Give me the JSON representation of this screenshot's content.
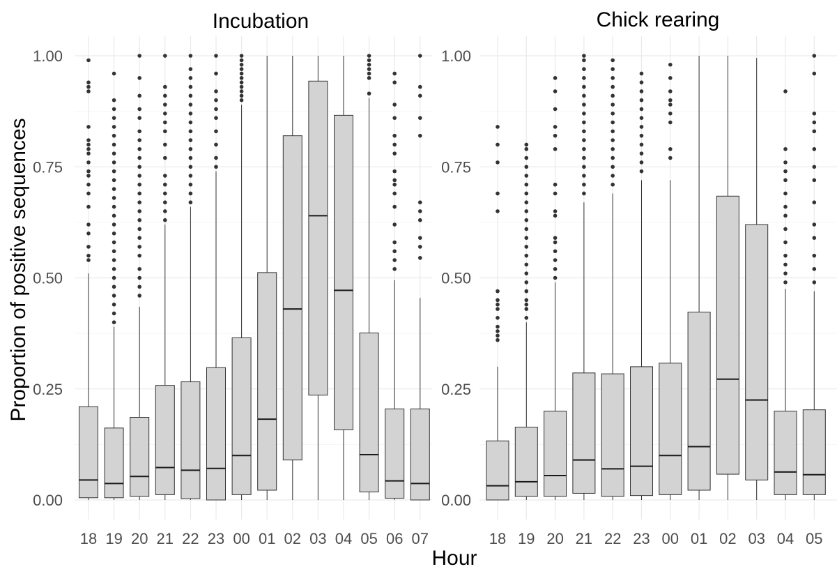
{
  "xlabel": "Hour",
  "ylabel": "Proportion of positive sequences",
  "chart_data": [
    {
      "type": "box",
      "title": "Incubation",
      "ylim": [
        0,
        1
      ],
      "y_ticks": [
        "0.00",
        "0.25",
        "0.50",
        "0.75",
        "1.00"
      ],
      "categories": [
        "18",
        "19",
        "20",
        "21",
        "22",
        "23",
        "00",
        "01",
        "02",
        "03",
        "04",
        "05",
        "06",
        "07"
      ],
      "boxes": [
        {
          "q1": 0.005,
          "median": 0.045,
          "q3": 0.21,
          "whisker_low": 0,
          "whisker_high": 0.51,
          "outliers": [
            0.54,
            0.55,
            0.57,
            0.6,
            0.62,
            0.66,
            0.69,
            0.71,
            0.73,
            0.74,
            0.76,
            0.78,
            0.79,
            0.8,
            0.81,
            0.84,
            0.92,
            0.93,
            0.94,
            0.99
          ]
        },
        {
          "q1": 0.005,
          "median": 0.037,
          "q3": 0.162,
          "whisker_low": 0,
          "whisker_high": 0.39,
          "outliers": [
            0.4,
            0.42,
            0.44,
            0.46,
            0.48,
            0.5,
            0.52,
            0.54,
            0.56,
            0.58,
            0.6,
            0.62,
            0.64,
            0.66,
            0.68,
            0.7,
            0.72,
            0.74,
            0.76,
            0.78,
            0.8,
            0.82,
            0.84,
            0.86,
            0.88,
            0.9,
            0.96
          ]
        },
        {
          "q1": 0.008,
          "median": 0.053,
          "q3": 0.186,
          "whisker_low": 0,
          "whisker_high": 0.435,
          "outliers": [
            0.46,
            0.48,
            0.5,
            0.52,
            0.55,
            0.57,
            0.59,
            0.61,
            0.63,
            0.65,
            0.67,
            0.69,
            0.71,
            0.73,
            0.75,
            0.77,
            0.79,
            0.81,
            0.83,
            0.86,
            0.88,
            0.91,
            0.95,
            1.0
          ]
        },
        {
          "q1": 0.012,
          "median": 0.073,
          "q3": 0.258,
          "whisker_low": 0,
          "whisker_high": 0.62,
          "outliers": [
            0.63,
            0.65,
            0.67,
            0.69,
            0.71,
            0.73,
            0.77,
            0.8,
            0.83,
            0.85,
            0.87,
            0.89,
            0.91,
            0.93,
            1.0
          ]
        },
        {
          "q1": 0.003,
          "median": 0.067,
          "q3": 0.266,
          "whisker_low": 0,
          "whisker_high": 0.66,
          "outliers": [
            0.67,
            0.69,
            0.71,
            0.73,
            0.75,
            0.77,
            0.79,
            0.81,
            0.83,
            0.85,
            0.87,
            0.89,
            0.91,
            0.93,
            0.95,
            0.97,
            1.0
          ]
        },
        {
          "q1": 0.0,
          "median": 0.071,
          "q3": 0.298,
          "whisker_low": 0,
          "whisker_high": 0.74,
          "outliers": [
            0.75,
            0.77,
            0.8,
            0.83,
            0.86,
            0.88,
            0.9,
            0.92,
            0.96,
            1.0
          ]
        },
        {
          "q1": 0.012,
          "median": 0.1,
          "q3": 0.365,
          "whisker_low": 0,
          "whisker_high": 0.89,
          "outliers": [
            0.9,
            0.91,
            0.92,
            0.93,
            0.94,
            0.95,
            0.96,
            0.97,
            0.98,
            0.99,
            1.0
          ]
        },
        {
          "q1": 0.022,
          "median": 0.182,
          "q3": 0.512,
          "whisker_low": 0,
          "whisker_high": 1.0,
          "outliers": []
        },
        {
          "q1": 0.09,
          "median": 0.43,
          "q3": 0.82,
          "whisker_low": 0,
          "whisker_high": 1.0,
          "outliers": []
        },
        {
          "q1": 0.236,
          "median": 0.64,
          "q3": 0.943,
          "whisker_low": 0,
          "whisker_high": 1.0,
          "outliers": []
        },
        {
          "q1": 0.158,
          "median": 0.472,
          "q3": 0.866,
          "whisker_low": 0,
          "whisker_high": 1.0,
          "outliers": []
        },
        {
          "q1": 0.018,
          "median": 0.102,
          "q3": 0.376,
          "whisker_low": 0,
          "whisker_high": 0.905,
          "outliers": [
            0.915,
            0.95,
            0.96,
            0.97,
            0.98,
            0.99,
            1.0
          ]
        },
        {
          "q1": 0.004,
          "median": 0.043,
          "q3": 0.205,
          "whisker_low": 0,
          "whisker_high": 0.495,
          "outliers": [
            0.52,
            0.54,
            0.56,
            0.58,
            0.62,
            0.66,
            0.69,
            0.71,
            0.72,
            0.74,
            0.78,
            0.8,
            0.82,
            0.86,
            0.89,
            0.94,
            0.96
          ]
        },
        {
          "q1": 0.0,
          "median": 0.037,
          "q3": 0.205,
          "whisker_low": 0,
          "whisker_high": 0.455,
          "outliers": [
            0.545,
            0.57,
            0.59,
            0.63,
            0.65,
            0.67,
            0.82,
            0.86,
            0.91,
            0.93,
            1.0
          ]
        }
      ]
    },
    {
      "type": "box",
      "title": "Chick rearing",
      "ylim": [
        0,
        1
      ],
      "y_ticks": [
        "0.00",
        "0.25",
        "0.50",
        "0.75",
        "1.00"
      ],
      "categories": [
        "18",
        "19",
        "20",
        "21",
        "22",
        "23",
        "00",
        "01",
        "02",
        "03",
        "04",
        "05"
      ],
      "boxes": [
        {
          "q1": 0.0,
          "median": 0.032,
          "q3": 0.133,
          "whisker_low": 0,
          "whisker_high": 0.3,
          "outliers": [
            0.36,
            0.37,
            0.38,
            0.39,
            0.41,
            0.43,
            0.44,
            0.45,
            0.47,
            0.65,
            0.69,
            0.76,
            0.8,
            0.84
          ]
        },
        {
          "q1": 0.008,
          "median": 0.041,
          "q3": 0.164,
          "whisker_low": 0,
          "whisker_high": 0.4,
          "outliers": [
            0.41,
            0.43,
            0.44,
            0.45,
            0.47,
            0.49,
            0.51,
            0.53,
            0.55,
            0.57,
            0.59,
            0.61,
            0.63,
            0.65,
            0.67,
            0.69,
            0.71,
            0.73,
            0.75,
            0.77,
            0.79,
            0.8
          ]
        },
        {
          "q1": 0.008,
          "median": 0.055,
          "q3": 0.2,
          "whisker_low": 0,
          "whisker_high": 0.49,
          "outliers": [
            0.5,
            0.52,
            0.54,
            0.56,
            0.58,
            0.59,
            0.64,
            0.65,
            0.69,
            0.71,
            0.79,
            0.82,
            0.84,
            0.88,
            0.92,
            0.95
          ]
        },
        {
          "q1": 0.015,
          "median": 0.09,
          "q3": 0.286,
          "whisker_low": 0,
          "whisker_high": 0.67,
          "outliers": [
            0.69,
            0.71,
            0.73,
            0.75,
            0.77,
            0.79,
            0.81,
            0.83,
            0.85,
            0.87,
            0.89,
            0.91,
            0.93,
            0.95,
            0.97,
            0.99,
            1.0
          ]
        },
        {
          "q1": 0.008,
          "median": 0.07,
          "q3": 0.284,
          "whisker_low": 0,
          "whisker_high": 0.69,
          "outliers": [
            0.71,
            0.73,
            0.75,
            0.77,
            0.79,
            0.81,
            0.83,
            0.85,
            0.87,
            0.89,
            0.91,
            0.93,
            0.95,
            0.97,
            0.99
          ]
        },
        {
          "q1": 0.01,
          "median": 0.076,
          "q3": 0.3,
          "whisker_low": 0,
          "whisker_high": 0.72,
          "outliers": [
            0.74,
            0.76,
            0.78,
            0.8,
            0.82,
            0.84,
            0.86,
            0.88,
            0.9,
            0.92,
            0.94,
            0.96
          ]
        },
        {
          "q1": 0.012,
          "median": 0.1,
          "q3": 0.308,
          "whisker_low": 0,
          "whisker_high": 0.72,
          "outliers": [
            0.77,
            0.79,
            0.85,
            0.87,
            0.89,
            0.9,
            0.92,
            0.95,
            0.98
          ]
        },
        {
          "q1": 0.022,
          "median": 0.12,
          "q3": 0.423,
          "whisker_low": 0,
          "whisker_high": 1.0,
          "outliers": []
        },
        {
          "q1": 0.058,
          "median": 0.272,
          "q3": 0.684,
          "whisker_low": 0,
          "whisker_high": 1.0,
          "outliers": []
        },
        {
          "q1": 0.045,
          "median": 0.225,
          "q3": 0.62,
          "whisker_low": 0,
          "whisker_high": 0.995,
          "outliers": []
        },
        {
          "q1": 0.012,
          "median": 0.063,
          "q3": 0.2,
          "whisker_low": 0,
          "whisker_high": 0.475,
          "outliers": [
            0.49,
            0.51,
            0.53,
            0.55,
            0.58,
            0.61,
            0.64,
            0.66,
            0.69,
            0.72,
            0.74,
            0.76,
            0.79,
            0.92
          ]
        },
        {
          "q1": 0.012,
          "median": 0.057,
          "q3": 0.203,
          "whisker_low": 0,
          "whisker_high": 0.47,
          "outliers": [
            0.49,
            0.52,
            0.55,
            0.59,
            0.62,
            0.67,
            0.72,
            0.75,
            0.79,
            0.83,
            0.85,
            0.87,
            0.96,
            1.0
          ]
        }
      ]
    }
  ]
}
